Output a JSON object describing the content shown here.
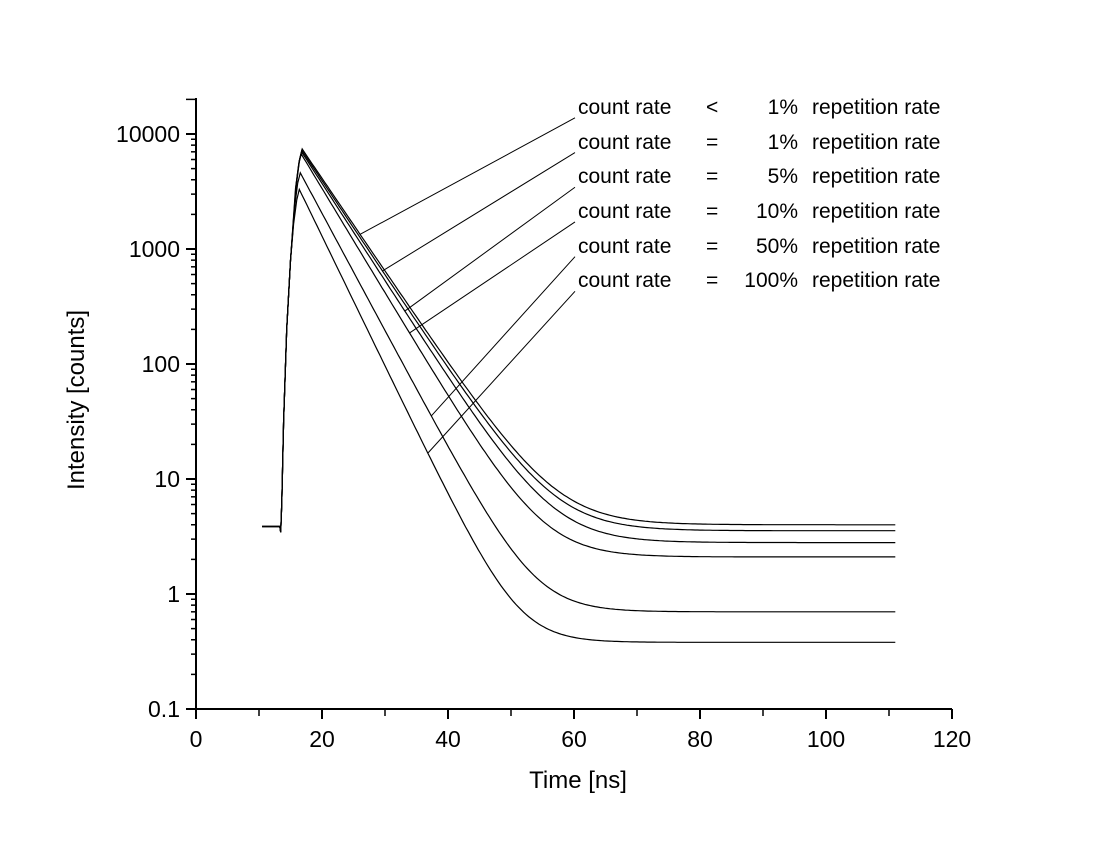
{
  "figure": {
    "background": "#ffffff",
    "line_color": "#000000"
  },
  "chart_data": {
    "type": "line",
    "title": "",
    "xlabel": "Time [ns]",
    "ylabel": "Intensity [counts]",
    "x_axis": {
      "min": 0,
      "max": 120,
      "major_ticks": [
        0,
        20,
        40,
        60,
        80,
        100,
        120
      ],
      "minor_ticks": [
        10,
        30,
        50,
        70,
        90,
        110
      ],
      "tick_labels": [
        "0",
        "20",
        "40",
        "60",
        "80",
        "100",
        "120"
      ]
    },
    "y_axis": {
      "scale": "log",
      "min": 0.1,
      "max": 20000,
      "major_ticks": [
        0.1,
        1,
        10,
        100,
        1000,
        10000
      ],
      "tick_labels": [
        "0.1",
        "1",
        "10",
        "100",
        "1000",
        "10000"
      ],
      "minor_tick_pattern": [
        2,
        3,
        4,
        5,
        6,
        7,
        8,
        9
      ],
      "top_end_tick_value": 20000
    },
    "grid": false,
    "legend": {
      "position": "upper-right",
      "prefix": "count rate",
      "suffix": "repetition rate"
    },
    "shared_pulse_shape": {
      "t_start_ns": 10.5,
      "t_end_ns": 111,
      "pre_pulse_background_counts": 3.86,
      "rise_points_t_counts": [
        [
          10.5,
          3.86
        ],
        [
          13.3,
          3.86
        ],
        [
          13.45,
          3.45
        ],
        [
          13.62,
          6.3
        ],
        [
          13.9,
          31.6
        ],
        [
          14.4,
          200
        ],
        [
          15.0,
          794
        ]
      ],
      "peak_approach_dt_dlog": [
        [
          -0.9,
          -0.3
        ],
        [
          -0.4,
          -0.09
        ],
        [
          0,
          0
        ]
      ]
    },
    "series": [
      {
        "label": "count rate <   1% repetition rate",
        "operator": "<",
        "percent": "1%",
        "amplitude_counts": 7400,
        "plateau_counts": 4.0,
        "decay_rate_per_ns": 0.186,
        "apparent_lifetime_ns": 5.4,
        "peak_time_ns": 16.85,
        "leader_attach_counts": 1400
      },
      {
        "label": "count rate =   1% repetition rate",
        "operator": "=",
        "percent": "1%",
        "amplitude_counts": 7200,
        "plateau_counts": 3.55,
        "decay_rate_per_ns": 0.189,
        "apparent_lifetime_ns": 5.3,
        "peak_time_ns": 16.8,
        "leader_attach_counts": 670
      },
      {
        "label": "count rate =   5% repetition rate",
        "operator": "=",
        "percent": "5%",
        "amplitude_counts": 7000,
        "plateau_counts": 2.8,
        "decay_rate_per_ns": 0.195,
        "apparent_lifetime_ns": 5.1,
        "peak_time_ns": 16.75,
        "leader_attach_counts": 300
      },
      {
        "label": "count rate =  10% repetition rate",
        "operator": "=",
        "percent": "10%",
        "amplitude_counts": 6700,
        "plateau_counts": 2.1,
        "decay_rate_per_ns": 0.209,
        "apparent_lifetime_ns": 4.8,
        "peak_time_ns": 16.7,
        "leader_attach_counts": 200
      },
      {
        "label": "count rate =  50% repetition rate",
        "operator": "=",
        "percent": "50%",
        "amplitude_counts": 4600,
        "plateau_counts": 0.7,
        "decay_rate_per_ns": 0.235,
        "apparent_lifetime_ns": 4.3,
        "peak_time_ns": 16.55,
        "leader_attach_counts": 38
      },
      {
        "label": "count rate = 100% repetition rate",
        "operator": "=",
        "percent": "100%",
        "amplitude_counts": 3300,
        "plateau_counts": 0.38,
        "decay_rate_per_ns": 0.26,
        "apparent_lifetime_ns": 3.8,
        "peak_time_ns": 16.4,
        "leader_attach_counts": 17
      }
    ]
  }
}
